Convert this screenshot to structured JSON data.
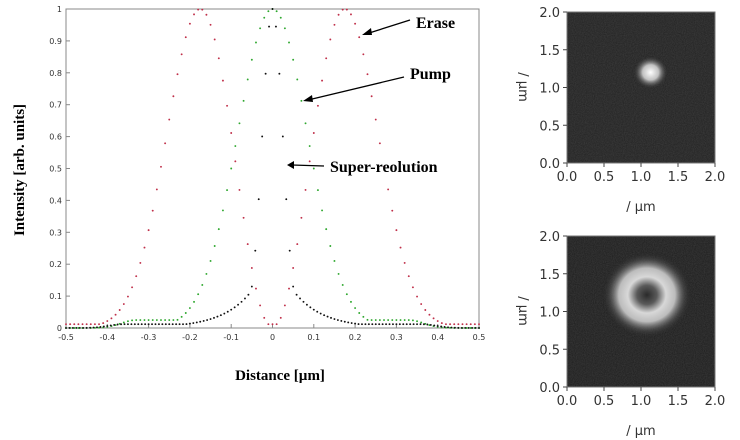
{
  "chart_data": [
    {
      "type": "scatter",
      "xlabel": "Distance [µm]",
      "ylabel": "Intensity [arb. units]",
      "xlim": [
        -0.5,
        0.5
      ],
      "ylim": [
        0,
        1
      ],
      "x_ticks": [
        "-0.5",
        "-0.4",
        "-0.3",
        "-0.2",
        "-0.1",
        "0",
        "0.1",
        "0.2",
        "0.3",
        "0.4",
        "0.5"
      ],
      "y_ticks": [
        "0",
        "0.1",
        "0.2",
        "0.3",
        "0.4",
        "0.5",
        "0.6",
        "0.7",
        "0.8",
        "0.9",
        "1"
      ],
      "grid": false,
      "series": [
        {
          "name": "Erase",
          "color": "#c0304a",
          "shape": "doughnut",
          "peak_positions": [
            -0.175,
            0.175
          ],
          "background": 0.012,
          "wing_level": 0.012
        },
        {
          "name": "Pump",
          "color": "#2fa82f",
          "shape": "gaussian",
          "center": 0,
          "fwhm": 0.2,
          "wing_level": 0.025
        },
        {
          "name": "Super-reolution",
          "color": "#111111",
          "shape": "gaussian-narrow",
          "center": 0,
          "fwhm": 0.07,
          "wing_level": 0.012
        }
      ],
      "annotations": [
        {
          "text": "Erase",
          "x": 0.1,
          "y": 0.97
        },
        {
          "text": "Pump",
          "x": 0.05,
          "y": 0.73
        },
        {
          "text": "Super-reolution",
          "x": 0.03,
          "y": 0.53
        }
      ]
    },
    {
      "type": "heatmap",
      "xlabel": "/ µm",
      "ylabel": "/ µm",
      "xlim": [
        0,
        2
      ],
      "ylim": [
        0,
        2
      ],
      "x_ticks": [
        "0.0",
        "0.5",
        "1.0",
        "1.5",
        "2.0"
      ],
      "y_ticks": [
        "0.0",
        "0.5",
        "1.0",
        "1.5",
        "2.0"
      ],
      "colormap": "grayscale",
      "spot": {
        "shape": "spot",
        "center": [
          1.13,
          1.2
        ],
        "radius": 0.1
      }
    },
    {
      "type": "heatmap",
      "xlabel": "/ µm",
      "ylabel": "/ µm",
      "xlim": [
        0,
        2
      ],
      "ylim": [
        0,
        2
      ],
      "x_ticks": [
        "0.0",
        "0.5",
        "1.0",
        "1.5",
        "2.0"
      ],
      "y_ticks": [
        "0.0",
        "0.5",
        "1.0",
        "1.5",
        "2.0"
      ],
      "colormap": "grayscale",
      "spot": {
        "shape": "doughnut",
        "center": [
          1.08,
          1.22
        ],
        "radius": 0.3,
        "hole_radius": 0.09
      }
    }
  ]
}
